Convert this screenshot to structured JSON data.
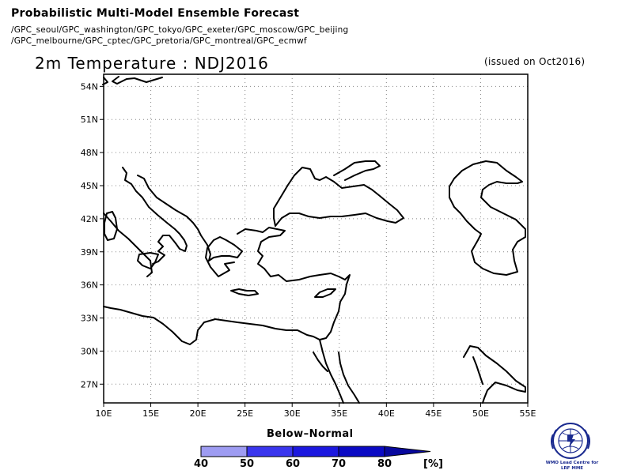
{
  "header": {
    "title": "Probabilistic Multi-Model Ensemble Forecast",
    "models_line1": "/GPC_seoul/GPC_washington/GPC_tokyo/GPC_exeter/GPC_moscow/GPC_beijing",
    "models_line2": "/GPC_melbourne/GPC_cptec/GPC_pretoria/GPC_montreal/GPC_ecmwf"
  },
  "map": {
    "variable_title": "2m Temperature : NDJ2016",
    "issued": "(issued on Oct2016)",
    "lat_ticks": [
      "54N",
      "51N",
      "48N",
      "45N",
      "42N",
      "39N",
      "36N",
      "33N",
      "30N",
      "27N"
    ],
    "lon_ticks": [
      "10E",
      "15E",
      "20E",
      "25E",
      "30E",
      "35E",
      "40E",
      "45E",
      "50E",
      "55E"
    ],
    "lat_values": [
      54,
      51,
      48,
      45,
      42,
      39,
      36,
      33,
      30,
      27
    ],
    "lon_values": [
      10,
      15,
      20,
      25,
      30,
      35,
      40,
      45,
      50,
      55
    ],
    "lat_range": [
      25.3,
      55.1
    ],
    "lon_range": [
      10,
      55
    ],
    "grid": true,
    "coastline_color": "#000000"
  },
  "legend": {
    "title": "Below–Normal",
    "ticks": [
      "40",
      "50",
      "60",
      "70",
      "80"
    ],
    "unit": "[%]",
    "bins": [
      {
        "from": 40,
        "to": 50,
        "color": "#9e9cf2"
      },
      {
        "from": 50,
        "to": 60,
        "color": "#3a36ee"
      },
      {
        "from": 60,
        "to": 70,
        "color": "#1c18e0"
      },
      {
        "from": 70,
        "to": 80,
        "color": "#0b0ac4"
      },
      {
        "from": 80,
        "to": 100,
        "color": "#08089e"
      }
    ]
  },
  "logo": {
    "caption_line1": "WMO Lead Centre for",
    "caption_line2": "LRF MME",
    "color": "#1a2a8f"
  }
}
